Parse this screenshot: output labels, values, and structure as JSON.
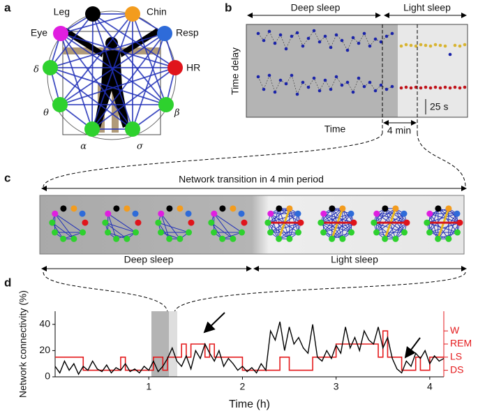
{
  "panel_labels": [
    "a",
    "b",
    "c",
    "d"
  ],
  "panel_a": {
    "nodes": [
      {
        "label": "Leg",
        "color": "#000000"
      },
      {
        "label": "Chin",
        "color": "#f39c1e"
      },
      {
        "label": "Resp",
        "color": "#2e6bd9"
      },
      {
        "label": "HR",
        "color": "#e0141b"
      },
      {
        "label": "β",
        "color": "#2ed12e"
      },
      {
        "label": "σ",
        "color": "#2ed12e"
      },
      {
        "label": "α",
        "color": "#2ed12e"
      },
      {
        "label": "θ",
        "color": "#2ed12e"
      },
      {
        "label": "δ",
        "color": "#2ed12e"
      },
      {
        "label": "Eye",
        "color": "#e01ee0"
      }
    ]
  },
  "panel_b": {
    "phases": [
      "Deep sleep",
      "Light sleep"
    ],
    "ylabel": "Time delay",
    "xlabel": "Time",
    "interval": "4 min",
    "scale": "25 s"
  },
  "panel_c": {
    "title": "Network transition in 4 min period",
    "phases": [
      "Deep sleep",
      "Light sleep"
    ]
  },
  "chart_data": {
    "type": "line",
    "xlabel": "Time (h)",
    "ylabel": "Network connectivity (%)",
    "xlim": [
      0,
      4.15
    ],
    "xticks": [
      1,
      2,
      3,
      4
    ],
    "ylim": [
      0,
      50
    ],
    "yticks": [
      0,
      20,
      40
    ],
    "y2lim": [
      0.5,
      5.5
    ],
    "y2ticks": [
      {
        "value": 1,
        "label": "DS"
      },
      {
        "value": 2,
        "label": "LS"
      },
      {
        "value": 3,
        "label": "REM"
      },
      {
        "value": 4,
        "label": "W"
      }
    ],
    "x": [
      0,
      0.05,
      0.1,
      0.15,
      0.2,
      0.25,
      0.3,
      0.35,
      0.4,
      0.45,
      0.5,
      0.55,
      0.6,
      0.65,
      0.7,
      0.75,
      0.8,
      0.85,
      0.9,
      0.95,
      1,
      1.05,
      1.1,
      1.15,
      1.2,
      1.25,
      1.3,
      1.35,
      1.4,
      1.45,
      1.5,
      1.55,
      1.6,
      1.65,
      1.7,
      1.75,
      1.8,
      1.85,
      1.9,
      1.95,
      2,
      2.05,
      2.1,
      2.15,
      2.2,
      2.25,
      2.3,
      2.35,
      2.4,
      2.45,
      2.5,
      2.55,
      2.6,
      2.65,
      2.7,
      2.75,
      2.8,
      2.85,
      2.9,
      2.95,
      3,
      3.05,
      3.1,
      3.15,
      3.2,
      3.25,
      3.3,
      3.35,
      3.4,
      3.45,
      3.5,
      3.55,
      3.6,
      3.65,
      3.7,
      3.75,
      3.8,
      3.85,
      3.9,
      3.95,
      4,
      4.05,
      4.1,
      4.15
    ],
    "series": [
      {
        "color": "#000000",
        "values": [
          8,
          3,
          12,
          5,
          10,
          2,
          8,
          5,
          12,
          6,
          4,
          9,
          3,
          7,
          5,
          10,
          4,
          6,
          3,
          8,
          5,
          12,
          4,
          8,
          14,
          22,
          12,
          8,
          16,
          6,
          20,
          14,
          25,
          18,
          12,
          20,
          8,
          14,
          10,
          5,
          8,
          4,
          7,
          3,
          10,
          5,
          35,
          28,
          42,
          20,
          38,
          25,
          30,
          22,
          18,
          40,
          15,
          12,
          20,
          14,
          24,
          18,
          38,
          22,
          30,
          20,
          35,
          28,
          25,
          38,
          22,
          30,
          14,
          6,
          3,
          12,
          8,
          18,
          14,
          20,
          10,
          16,
          12,
          14
        ]
      },
      {
        "color": "#e41a1c",
        "axis": "y2",
        "values": [
          2,
          2,
          2,
          2,
          2,
          2,
          1,
          1,
          1,
          1,
          1,
          1,
          1,
          1,
          2,
          1,
          1,
          1,
          1,
          1,
          1,
          2,
          2,
          1,
          2,
          2,
          2,
          3,
          2,
          3,
          3,
          3,
          2,
          3,
          2,
          2,
          2,
          2,
          2,
          2,
          1,
          1,
          1,
          1,
          1,
          1,
          1,
          1,
          2,
          2,
          1,
          1,
          1,
          1,
          1,
          2,
          2,
          2,
          2,
          2,
          3,
          3,
          3,
          3,
          3,
          3,
          3,
          3,
          3,
          2,
          4,
          2,
          2,
          2,
          1,
          1,
          1,
          2,
          1,
          1,
          2,
          2,
          2,
          2
        ]
      }
    ]
  }
}
